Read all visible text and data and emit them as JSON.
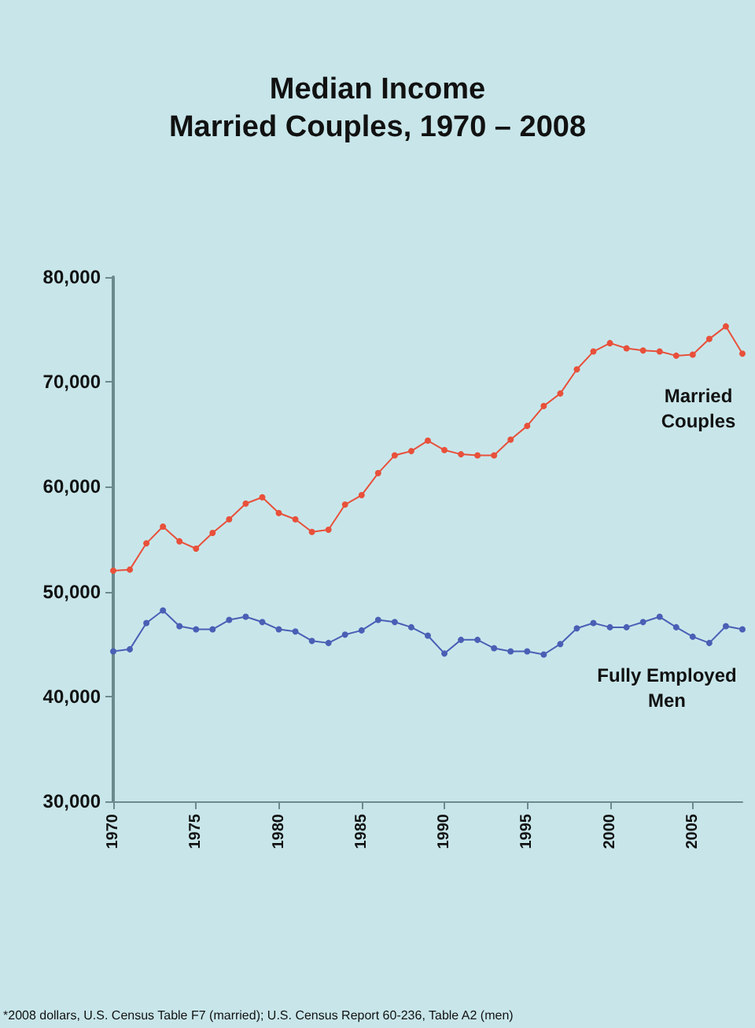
{
  "chart_data": {
    "type": "line",
    "title": "Median Income\nMarried Couples, 1970 – 2008",
    "x": [
      1970,
      1971,
      1972,
      1973,
      1974,
      1975,
      1976,
      1977,
      1978,
      1979,
      1980,
      1981,
      1982,
      1983,
      1984,
      1985,
      1986,
      1987,
      1988,
      1989,
      1990,
      1991,
      1992,
      1993,
      1994,
      1995,
      1996,
      1997,
      1998,
      1999,
      2000,
      2001,
      2002,
      2003,
      2004,
      2005,
      2006,
      2007,
      2008
    ],
    "series": [
      {
        "name": "Married Couples",
        "color": "#e8503a",
        "values": [
          52000,
          52100,
          54600,
          56200,
          54800,
          54100,
          55600,
          56900,
          58400,
          59000,
          57500,
          56900,
          55700,
          55900,
          58300,
          59200,
          61300,
          63000,
          63400,
          64400,
          63500,
          63100,
          63000,
          63000,
          64500,
          65800,
          67700,
          68900,
          71200,
          72900,
          73700,
          73200,
          73000,
          72900,
          72500,
          72600,
          74100,
          75300,
          72700
        ]
      },
      {
        "name": "Fully Employed Men",
        "color": "#4a5fb5",
        "values": [
          44300,
          44500,
          47000,
          48200,
          46700,
          46400,
          46400,
          47300,
          47600,
          47100,
          46400,
          46200,
          45300,
          45100,
          45900,
          46300,
          47300,
          47100,
          46600,
          45800,
          44100,
          45400,
          45400,
          44600,
          44300,
          44300,
          44000,
          45000,
          46500,
          47000,
          46600,
          46600,
          47100,
          47600,
          46600,
          45700,
          45100,
          46700,
          46400
        ]
      }
    ],
    "xlim": [
      1970,
      2008
    ],
    "xticks": [
      1970,
      1975,
      1980,
      1985,
      1990,
      1995,
      2000,
      2005
    ],
    "ylim": [
      30000,
      80000
    ],
    "yticks": [
      {
        "value": 30000,
        "label": "30,000"
      },
      {
        "value": 40000,
        "label": "40,000"
      },
      {
        "value": 50000,
        "label": "50,000"
      },
      {
        "value": 60000,
        "label": "60,000"
      },
      {
        "value": 70000,
        "label": "70,000"
      },
      {
        "value": 80000,
        "label": "80,000"
      }
    ],
    "grid": false,
    "legend": false,
    "marker": "circle",
    "line_style": "solid",
    "annotations": [
      "*2008 dollars, U.S. Census Table F7 (married); U.S. Census Report 60-236, Table A2 (men)"
    ]
  }
}
